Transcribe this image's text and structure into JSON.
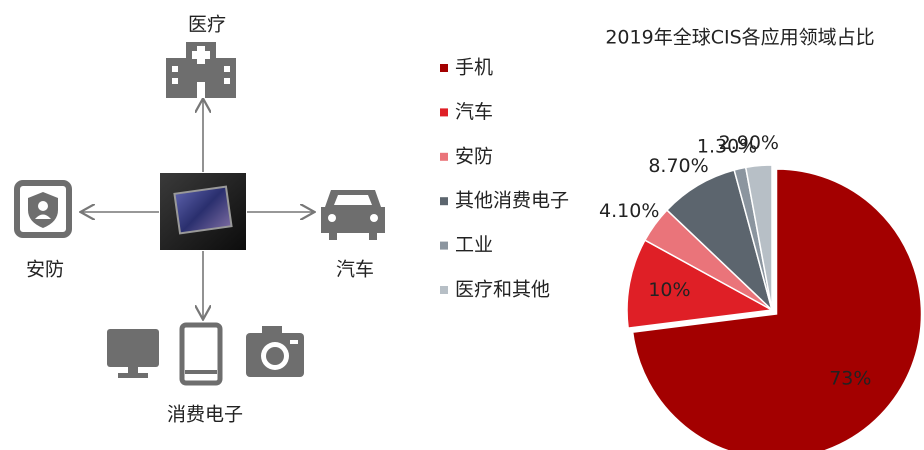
{
  "diagram": {
    "center": "CIS",
    "nodes": [
      {
        "label": "医疗"
      },
      {
        "label": "安防"
      },
      {
        "label": "汽车"
      },
      {
        "label": "消费电子"
      }
    ]
  },
  "chart_data": {
    "type": "pie",
    "title": "2019年全球CIS各应用领域占比",
    "categories": [
      "手机",
      "汽车",
      "安防",
      "其他消费电子",
      "工业",
      "医疗和其他"
    ],
    "values": [
      73,
      10,
      4.1,
      8.7,
      1.3,
      2.9
    ],
    "value_labels": [
      "73%",
      "10%",
      "4.10%",
      "8.70%",
      "1.30%",
      "2.90%"
    ],
    "colors": [
      "#a30000",
      "#df1f26",
      "#ea747a",
      "#5c656e",
      "#8b959f",
      "#b7bfc6"
    ],
    "legend": "left"
  }
}
